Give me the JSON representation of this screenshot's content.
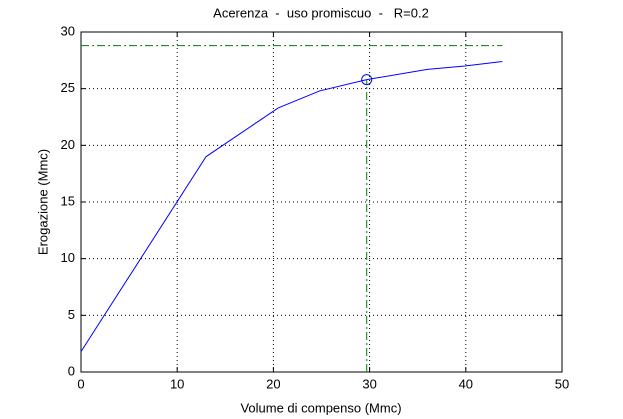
{
  "chart_data": {
    "type": "line",
    "title": "Acerenza  -  uso promiscuo  -   R=0.2",
    "xlabel": "Volume di compenso (Mmc)",
    "ylabel": "Erogazione (Mmc)",
    "xlim": [
      0,
      50
    ],
    "ylim": [
      0,
      30
    ],
    "xticks": [
      0,
      10,
      20,
      30,
      40,
      50
    ],
    "yticks": [
      0,
      5,
      10,
      15,
      20,
      25,
      30
    ],
    "grid": true,
    "series": [
      {
        "color": "#0000ff",
        "style": "solid",
        "x": [
          0,
          13,
          20.5,
          24.8,
          29.7,
          36,
          39.9,
          43.8
        ],
        "values": [
          1.8,
          19,
          23.3,
          24.8,
          25.8,
          26.7,
          27,
          27.4
        ]
      },
      {
        "color": "#008000",
        "style": "dashdot",
        "x": [
          0,
          43.8
        ],
        "values": [
          28.8,
          28.8
        ]
      },
      {
        "color": "#008000",
        "style": "dashdot",
        "x": [
          29.7,
          29.7
        ],
        "values": [
          0,
          25.8
        ]
      },
      {
        "color": "#0000ff",
        "style": "none",
        "marker": "circle",
        "x": [
          29.7
        ],
        "values": [
          25.8
        ]
      }
    ]
  }
}
